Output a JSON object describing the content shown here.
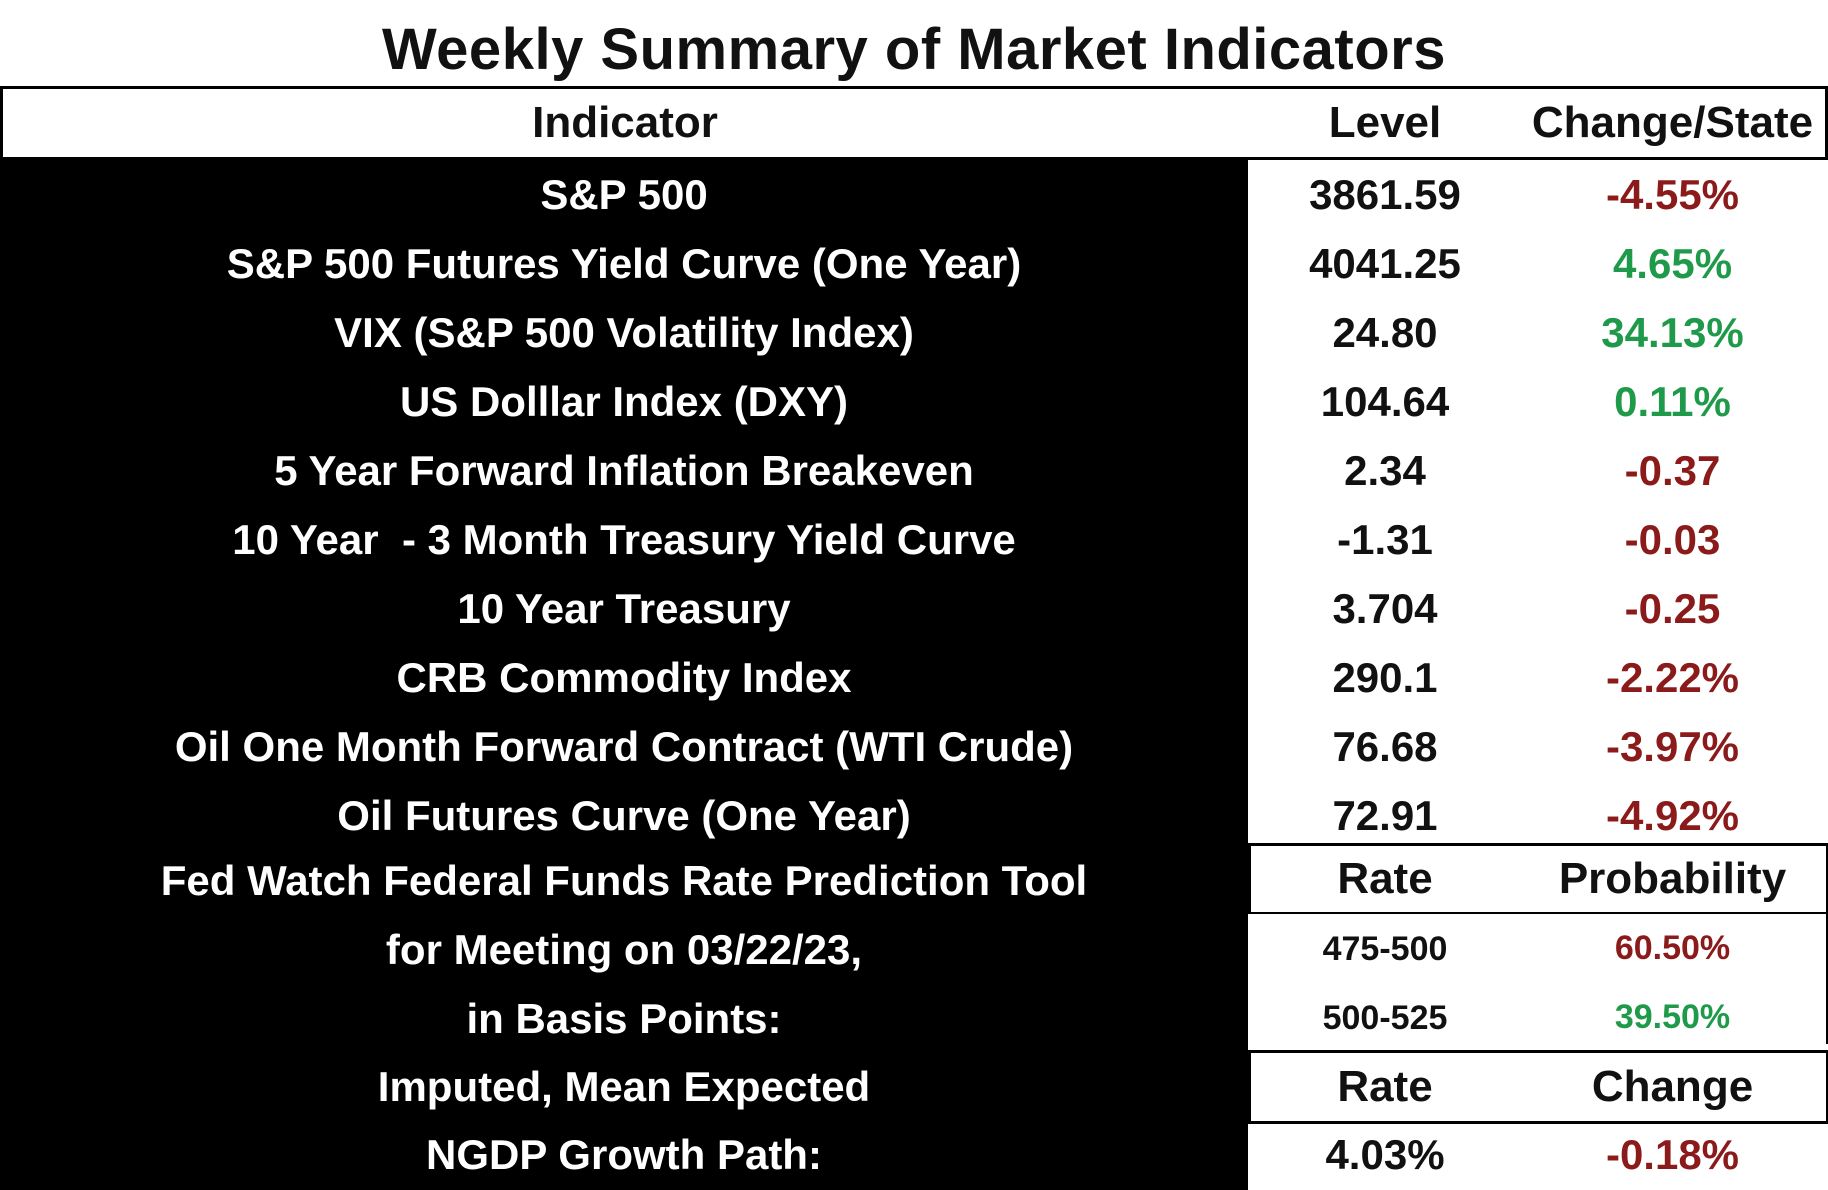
{
  "title": "Weekly Summary of Market Indicators",
  "colors": {
    "negative": "#8b1a1a",
    "positive": "#1f9a4a",
    "text": "#111111",
    "black_panel": "#000000"
  },
  "header": {
    "indicator": "Indicator",
    "level": "Level",
    "change": "Change/State"
  },
  "rows": [
    {
      "indicator": "S&P 500",
      "level": "3861.59",
      "change": "-4.55%",
      "sign": "negative"
    },
    {
      "indicator": "S&P 500 Futures Yield Curve (One Year)",
      "level": "4041.25",
      "change": "4.65%",
      "sign": "positive"
    },
    {
      "indicator": "VIX (S&P 500 Volatility Index)",
      "level": "24.80",
      "change": "34.13%",
      "sign": "positive"
    },
    {
      "indicator": "US Dolllar Index (DXY)",
      "level": "104.64",
      "change": "0.11%",
      "sign": "positive"
    },
    {
      "indicator": "5 Year Forward Inflation Breakeven",
      "level": "2.34",
      "change": "-0.37",
      "sign": "negative"
    },
    {
      "indicator": "10 Year  - 3 Month Treasury Yield Curve",
      "level": "-1.31",
      "change": "-0.03",
      "sign": "negative"
    },
    {
      "indicator": "10 Year Treasury",
      "level": "3.704",
      "change": "-0.25",
      "sign": "negative"
    },
    {
      "indicator": "CRB Commodity Index",
      "level": "290.1",
      "change": "-2.22%",
      "sign": "negative"
    },
    {
      "indicator": "Oil One Month Forward Contract (WTI Crude)",
      "level": "76.68",
      "change": "-3.97%",
      "sign": "negative"
    },
    {
      "indicator": "Oil Futures Curve (One Year)",
      "level": "72.91",
      "change": "-4.92%",
      "sign": "negative"
    }
  ],
  "fedwatch": {
    "label_lines": [
      "Fed Watch Federal Funds Rate Prediction Tool",
      "for Meeting on 03/22/23,",
      "in Basis Points:"
    ],
    "header_rate": "Rate",
    "header_probability": "Probability",
    "entries": [
      {
        "rate": "475-500",
        "probability": "60.50%",
        "sign": "negative"
      },
      {
        "rate": "500-525",
        "probability": "39.50%",
        "sign": "positive"
      }
    ]
  },
  "ngdp": {
    "label_lines": [
      "Imputed, Mean Expected",
      "NGDP Growth Path:"
    ],
    "header_rate": "Rate",
    "header_change": "Change",
    "rate": "4.03%",
    "change": "-0.18%",
    "sign": "negative"
  }
}
